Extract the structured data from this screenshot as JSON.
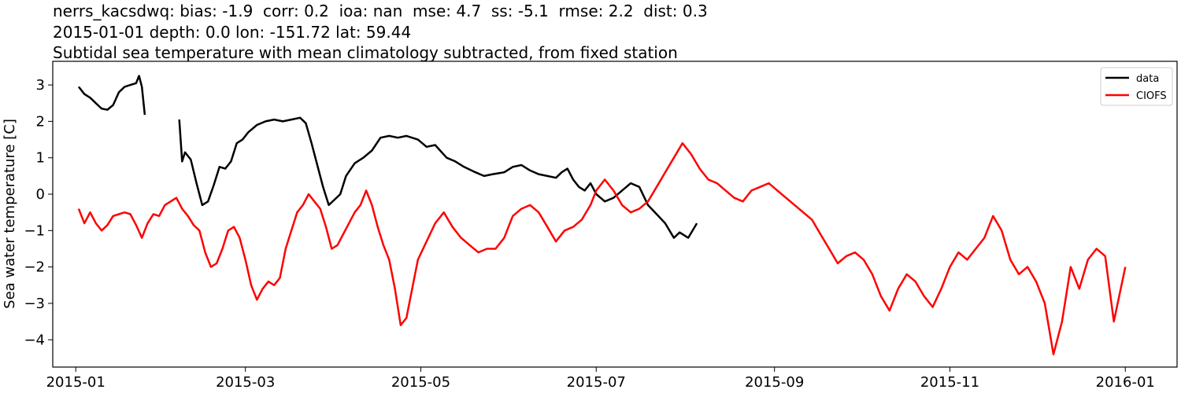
{
  "header": {
    "line1": "nerrs_kacsdwq: bias: -1.9  corr: 0.2  ioa: nan  mse: 4.7  ss: -5.1  rmse: 2.2  dist: 0.3",
    "line2": "2015-01-01 depth: 0.0 lon: -151.72 lat: 59.44",
    "line3": "Subtidal sea temperature with mean climatology subtracted, from fixed station"
  },
  "chart_data": {
    "type": "line",
    "title": "Subtidal sea temperature with mean climatology subtracted, from fixed station",
    "xlabel": "",
    "ylabel": "Sea water temperature [C]",
    "xlim": [
      "2014-12-24",
      "2016-01-19"
    ],
    "ylim": [
      -4.75,
      3.65
    ],
    "x_ticks": [
      "2015-01",
      "2015-03",
      "2015-05",
      "2015-07",
      "2015-09",
      "2015-11",
      "2016-01"
    ],
    "y_ticks": [
      3,
      2,
      1,
      0,
      -1,
      -2,
      -3,
      -4
    ],
    "y_tick_labels": [
      "3",
      "2",
      "1",
      "0",
      "−1",
      "−2",
      "−3",
      "−4"
    ],
    "grid": false,
    "legend_position": "top-right",
    "series": [
      {
        "name": "data",
        "color": "#000000",
        "segments": [
          [
            [
              "2015-01-02",
              2.95
            ],
            [
              "2015-01-04",
              2.75
            ],
            [
              "2015-01-06",
              2.65
            ],
            [
              "2015-01-08",
              2.5
            ],
            [
              "2015-01-10",
              2.35
            ],
            [
              "2015-01-12",
              2.32
            ],
            [
              "2015-01-14",
              2.45
            ],
            [
              "2015-01-16",
              2.8
            ],
            [
              "2015-01-18",
              2.95
            ],
            [
              "2015-01-20",
              3.0
            ],
            [
              "2015-01-22",
              3.05
            ],
            [
              "2015-01-23",
              3.25
            ],
            [
              "2015-01-24",
              2.95
            ],
            [
              "2015-01-25",
              2.18
            ]
          ],
          [
            [
              "2015-02-06",
              2.05
            ],
            [
              "2015-02-07",
              0.9
            ],
            [
              "2015-02-08",
              1.15
            ],
            [
              "2015-02-10",
              0.95
            ],
            [
              "2015-02-12",
              0.3
            ],
            [
              "2015-02-14",
              -0.3
            ],
            [
              "2015-02-16",
              -0.2
            ],
            [
              "2015-02-18",
              0.25
            ],
            [
              "2015-02-20",
              0.75
            ],
            [
              "2015-02-22",
              0.7
            ],
            [
              "2015-02-24",
              0.9
            ],
            [
              "2015-02-26",
              1.4
            ],
            [
              "2015-02-28",
              1.5
            ],
            [
              "2015-03-02",
              1.7
            ],
            [
              "2015-03-05",
              1.9
            ],
            [
              "2015-03-08",
              2.0
            ],
            [
              "2015-03-11",
              2.05
            ],
            [
              "2015-03-14",
              2.0
            ],
            [
              "2015-03-17",
              2.05
            ],
            [
              "2015-03-20",
              2.1
            ],
            [
              "2015-03-22",
              1.95
            ],
            [
              "2015-03-24",
              1.4
            ],
            [
              "2015-03-26",
              0.8
            ],
            [
              "2015-03-28",
              0.2
            ],
            [
              "2015-03-30",
              -0.3
            ],
            [
              "2015-04-01",
              -0.15
            ],
            [
              "2015-04-03",
              0.0
            ],
            [
              "2015-04-05",
              0.5
            ],
            [
              "2015-04-08",
              0.85
            ],
            [
              "2015-04-11",
              1.0
            ],
            [
              "2015-04-14",
              1.2
            ],
            [
              "2015-04-17",
              1.55
            ],
            [
              "2015-04-20",
              1.6
            ],
            [
              "2015-04-23",
              1.55
            ],
            [
              "2015-04-26",
              1.6
            ],
            [
              "2015-04-30",
              1.5
            ],
            [
              "2015-05-03",
              1.3
            ],
            [
              "2015-05-06",
              1.35
            ],
            [
              "2015-05-10",
              1.0
            ],
            [
              "2015-05-13",
              0.9
            ],
            [
              "2015-05-16",
              0.75
            ],
            [
              "2015-05-20",
              0.6
            ],
            [
              "2015-05-23",
              0.5
            ],
            [
              "2015-05-26",
              0.55
            ],
            [
              "2015-05-30",
              0.6
            ],
            [
              "2015-06-02",
              0.75
            ],
            [
              "2015-06-05",
              0.8
            ],
            [
              "2015-06-08",
              0.65
            ],
            [
              "2015-06-11",
              0.55
            ],
            [
              "2015-06-14",
              0.5
            ],
            [
              "2015-06-17",
              0.45
            ],
            [
              "2015-06-19",
              0.6
            ],
            [
              "2015-06-21",
              0.7
            ],
            [
              "2015-06-23",
              0.4
            ],
            [
              "2015-06-25",
              0.2
            ],
            [
              "2015-06-27",
              0.1
            ],
            [
              "2015-06-29",
              0.3
            ],
            [
              "2015-07-01",
              0.0
            ],
            [
              "2015-07-04",
              -0.2
            ],
            [
              "2015-07-07",
              -0.1
            ],
            [
              "2015-07-10",
              0.1
            ],
            [
              "2015-07-13",
              0.3
            ],
            [
              "2015-07-16",
              0.2
            ],
            [
              "2015-07-19",
              -0.3
            ],
            [
              "2015-07-22",
              -0.55
            ],
            [
              "2015-07-25",
              -0.8
            ],
            [
              "2015-07-28",
              -1.2
            ],
            [
              "2015-07-30",
              -1.05
            ],
            [
              "2015-08-02",
              -1.2
            ],
            [
              "2015-08-05",
              -0.8
            ]
          ]
        ]
      },
      {
        "name": "CIOFS",
        "color": "#ff0000",
        "segments": [
          [
            [
              "2015-01-02",
              -0.4
            ],
            [
              "2015-01-04",
              -0.8
            ],
            [
              "2015-01-06",
              -0.5
            ],
            [
              "2015-01-08",
              -0.8
            ],
            [
              "2015-01-10",
              -1.0
            ],
            [
              "2015-01-12",
              -0.85
            ],
            [
              "2015-01-14",
              -0.6
            ],
            [
              "2015-01-16",
              -0.55
            ],
            [
              "2015-01-18",
              -0.5
            ],
            [
              "2015-01-20",
              -0.55
            ],
            [
              "2015-01-22",
              -0.85
            ],
            [
              "2015-01-24",
              -1.2
            ],
            [
              "2015-01-26",
              -0.8
            ],
            [
              "2015-01-28",
              -0.55
            ],
            [
              "2015-01-30",
              -0.6
            ],
            [
              "2015-02-01",
              -0.3
            ],
            [
              "2015-02-03",
              -0.2
            ],
            [
              "2015-02-05",
              -0.1
            ],
            [
              "2015-02-07",
              -0.4
            ],
            [
              "2015-02-09",
              -0.6
            ],
            [
              "2015-02-11",
              -0.85
            ],
            [
              "2015-02-13",
              -1.0
            ],
            [
              "2015-02-15",
              -1.6
            ],
            [
              "2015-02-17",
              -2.0
            ],
            [
              "2015-02-19",
              -1.9
            ],
            [
              "2015-02-21",
              -1.5
            ],
            [
              "2015-02-23",
              -1.0
            ],
            [
              "2015-02-25",
              -0.9
            ],
            [
              "2015-02-27",
              -1.2
            ],
            [
              "2015-03-01",
              -1.8
            ],
            [
              "2015-03-03",
              -2.5
            ],
            [
              "2015-03-05",
              -2.9
            ],
            [
              "2015-03-07",
              -2.6
            ],
            [
              "2015-03-09",
              -2.4
            ],
            [
              "2015-03-11",
              -2.5
            ],
            [
              "2015-03-13",
              -2.3
            ],
            [
              "2015-03-15",
              -1.5
            ],
            [
              "2015-03-17",
              -1.0
            ],
            [
              "2015-03-19",
              -0.5
            ],
            [
              "2015-03-21",
              -0.3
            ],
            [
              "2015-03-23",
              0.0
            ],
            [
              "2015-03-25",
              -0.2
            ],
            [
              "2015-03-27",
              -0.4
            ],
            [
              "2015-03-29",
              -0.9
            ],
            [
              "2015-03-31",
              -1.5
            ],
            [
              "2015-04-02",
              -1.4
            ],
            [
              "2015-04-04",
              -1.1
            ],
            [
              "2015-04-06",
              -0.8
            ],
            [
              "2015-04-08",
              -0.5
            ],
            [
              "2015-04-10",
              -0.3
            ],
            [
              "2015-04-12",
              0.1
            ],
            [
              "2015-04-14",
              -0.3
            ],
            [
              "2015-04-16",
              -0.9
            ],
            [
              "2015-04-18",
              -1.4
            ],
            [
              "2015-04-20",
              -1.8
            ],
            [
              "2015-04-22",
              -2.6
            ],
            [
              "2015-04-24",
              -3.6
            ],
            [
              "2015-04-26",
              -3.4
            ],
            [
              "2015-04-28",
              -2.6
            ],
            [
              "2015-04-30",
              -1.8
            ],
            [
              "2015-05-03",
              -1.3
            ],
            [
              "2015-05-06",
              -0.8
            ],
            [
              "2015-05-09",
              -0.5
            ],
            [
              "2015-05-12",
              -0.9
            ],
            [
              "2015-05-15",
              -1.2
            ],
            [
              "2015-05-18",
              -1.4
            ],
            [
              "2015-05-21",
              -1.6
            ],
            [
              "2015-05-24",
              -1.5
            ],
            [
              "2015-05-27",
              -1.5
            ],
            [
              "2015-05-30",
              -1.2
            ],
            [
              "2015-06-02",
              -0.6
            ],
            [
              "2015-06-05",
              -0.4
            ],
            [
              "2015-06-08",
              -0.3
            ],
            [
              "2015-06-11",
              -0.5
            ],
            [
              "2015-06-14",
              -0.9
            ],
            [
              "2015-06-17",
              -1.3
            ],
            [
              "2015-06-20",
              -1.0
            ],
            [
              "2015-06-23",
              -0.9
            ],
            [
              "2015-06-26",
              -0.7
            ],
            [
              "2015-06-29",
              -0.3
            ],
            [
              "2015-07-01",
              0.1
            ],
            [
              "2015-07-04",
              0.4
            ],
            [
              "2015-07-07",
              0.1
            ],
            [
              "2015-07-10",
              -0.3
            ],
            [
              "2015-07-13",
              -0.5
            ],
            [
              "2015-07-16",
              -0.4
            ],
            [
              "2015-07-19",
              -0.2
            ],
            [
              "2015-07-22",
              0.2
            ],
            [
              "2015-07-25",
              0.6
            ],
            [
              "2015-07-28",
              1.0
            ],
            [
              "2015-07-31",
              1.4
            ],
            [
              "2015-08-03",
              1.1
            ],
            [
              "2015-08-06",
              0.7
            ],
            [
              "2015-08-09",
              0.4
            ],
            [
              "2015-08-12",
              0.3
            ],
            [
              "2015-08-15",
              0.1
            ],
            [
              "2015-08-18",
              -0.1
            ],
            [
              "2015-08-21",
              -0.2
            ],
            [
              "2015-08-24",
              0.1
            ],
            [
              "2015-08-27",
              0.2
            ],
            [
              "2015-08-30",
              0.3
            ],
            [
              "2015-09-02",
              0.1
            ],
            [
              "2015-09-05",
              -0.1
            ],
            [
              "2015-09-08",
              -0.3
            ],
            [
              "2015-09-11",
              -0.5
            ],
            [
              "2015-09-14",
              -0.7
            ],
            [
              "2015-09-17",
              -1.1
            ],
            [
              "2015-09-20",
              -1.5
            ],
            [
              "2015-09-23",
              -1.9
            ],
            [
              "2015-09-26",
              -1.7
            ],
            [
              "2015-09-29",
              -1.6
            ],
            [
              "2015-10-02",
              -1.8
            ],
            [
              "2015-10-05",
              -2.2
            ],
            [
              "2015-10-08",
              -2.8
            ],
            [
              "2015-10-11",
              -3.2
            ],
            [
              "2015-10-14",
              -2.6
            ],
            [
              "2015-10-17",
              -2.2
            ],
            [
              "2015-10-20",
              -2.4
            ],
            [
              "2015-10-23",
              -2.8
            ],
            [
              "2015-10-26",
              -3.1
            ],
            [
              "2015-10-29",
              -2.6
            ],
            [
              "2015-11-01",
              -2.0
            ],
            [
              "2015-11-04",
              -1.6
            ],
            [
              "2015-11-07",
              -1.8
            ],
            [
              "2015-11-10",
              -1.5
            ],
            [
              "2015-11-13",
              -1.2
            ],
            [
              "2015-11-16",
              -0.6
            ],
            [
              "2015-11-19",
              -1.0
            ],
            [
              "2015-11-22",
              -1.8
            ],
            [
              "2015-11-25",
              -2.2
            ],
            [
              "2015-11-28",
              -2.0
            ],
            [
              "2015-12-01",
              -2.4
            ],
            [
              "2015-12-04",
              -3.0
            ],
            [
              "2015-12-07",
              -4.4
            ],
            [
              "2015-12-10",
              -3.5
            ],
            [
              "2015-12-13",
              -2.0
            ],
            [
              "2015-12-16",
              -2.6
            ],
            [
              "2015-12-19",
              -1.8
            ],
            [
              "2015-12-22",
              -1.5
            ],
            [
              "2015-12-25",
              -1.7
            ],
            [
              "2015-12-28",
              -3.5
            ],
            [
              "2016-01-01",
              -2.0
            ]
          ]
        ]
      }
    ]
  }
}
